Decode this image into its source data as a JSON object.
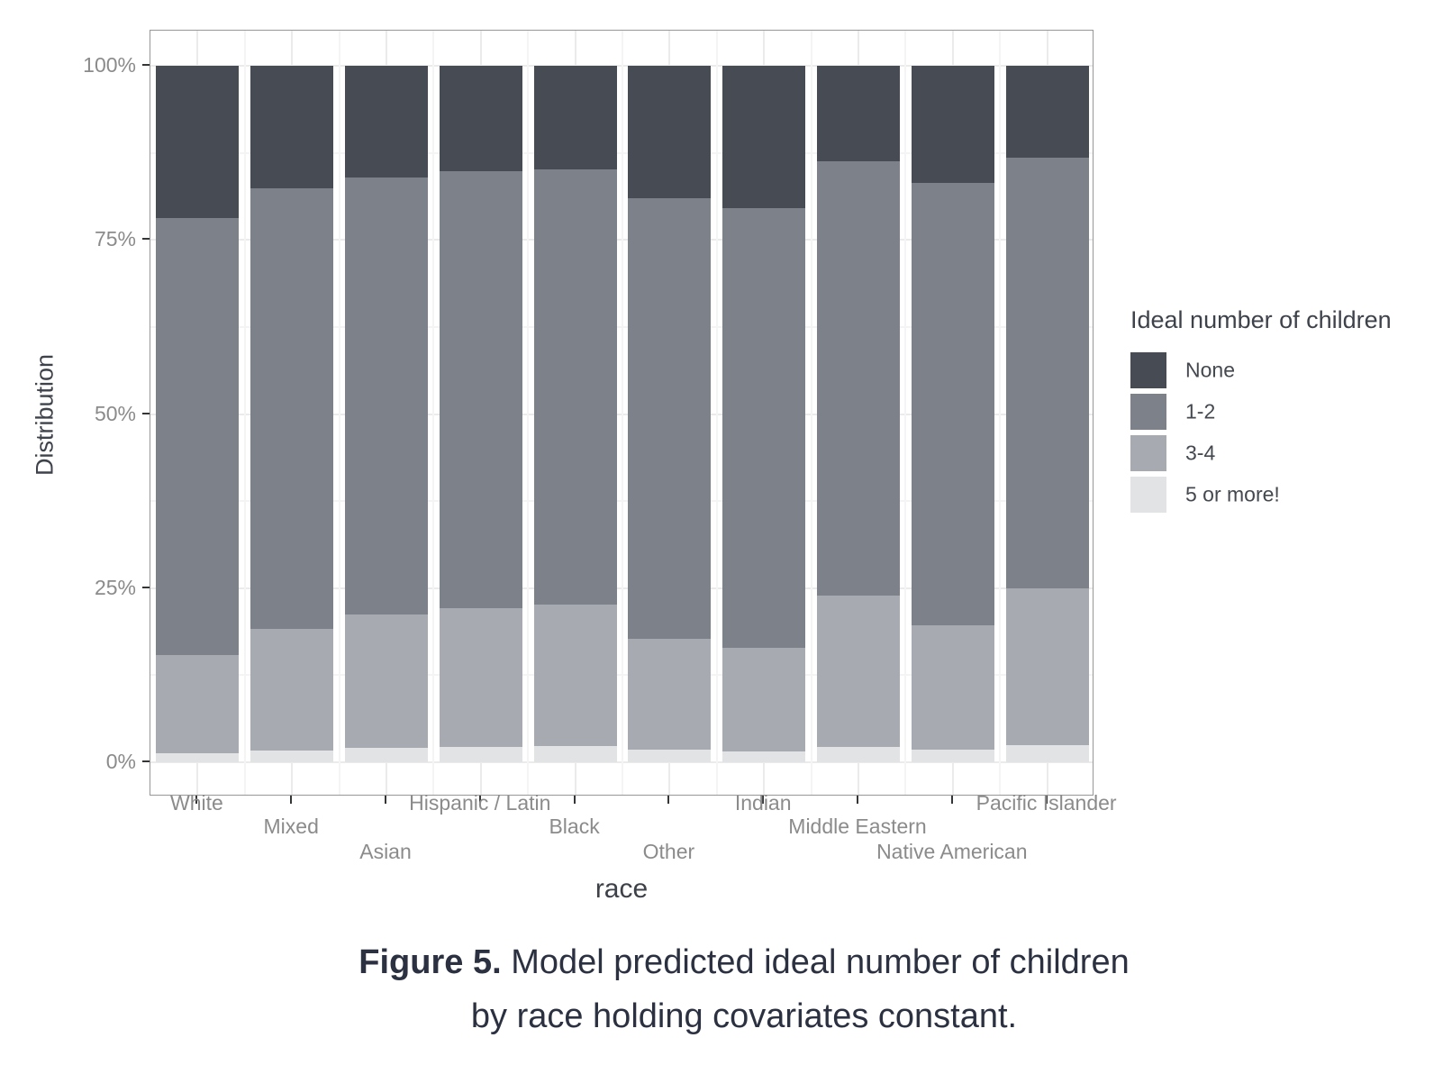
{
  "chart_data": {
    "type": "bar",
    "stacked": true,
    "title": "",
    "xlabel": "race",
    "ylabel": "Distribution",
    "ylim": [
      0,
      100
    ],
    "y_tick_labels": [
      "0%",
      "25%",
      "50%",
      "75%",
      "100%"
    ],
    "y_tick_values": [
      0,
      25,
      50,
      75,
      100
    ],
    "y_minor_values": [
      12.5,
      37.5,
      62.5,
      87.5
    ],
    "grid": true,
    "legend_title": "Ideal number of children",
    "legend_position": "right",
    "categories": [
      "White",
      "Mixed",
      "Asian",
      "Hispanic / Latin",
      "Black",
      "Other",
      "Indian",
      "Middle Eastern",
      "Native American",
      "Pacific Islander"
    ],
    "category_label_rows": [
      0,
      1,
      2,
      0,
      1,
      2,
      0,
      1,
      2,
      0
    ],
    "series": [
      {
        "name": "None",
        "color": "#474b53",
        "values": [
          21.8,
          17.6,
          16.1,
          15.2,
          14.9,
          19.0,
          20.4,
          13.7,
          16.8,
          13.2
        ]
      },
      {
        "name": "1-2",
        "color": "#7d8189",
        "values": [
          62.8,
          63.3,
          62.7,
          62.7,
          62.4,
          63.3,
          63.2,
          62.4,
          63.6,
          61.8
        ]
      },
      {
        "name": "3-4",
        "color": "#a7aab0",
        "values": [
          14.1,
          17.4,
          19.1,
          19.9,
          20.4,
          15.9,
          14.9,
          21.7,
          17.8,
          22.6
        ]
      },
      {
        "name": "5 or more!",
        "color": "#e2e3e5",
        "values": [
          1.3,
          1.7,
          2.1,
          2.2,
          2.3,
          1.8,
          1.5,
          2.2,
          1.8,
          2.4
        ]
      }
    ],
    "stack_order_bottom_to_top": [
      "5 or more!",
      "3-4",
      "1-2",
      "None"
    ]
  },
  "caption": {
    "bold_prefix": "Figure 5.",
    "line1_rest": " Model predicted ideal number of children",
    "line2": "by race holding covariates constant."
  },
  "colors": {
    "background": "#ffffff",
    "panel_border": "#979797",
    "grid_major": "#ebebeb",
    "grid_minor": "#f4f4f4",
    "axis_tick": "#333537",
    "tick_label": "#8b8b8b",
    "axis_title": "#3e424a",
    "legend_label": "#44484f",
    "caption_text": "#2b3140"
  }
}
